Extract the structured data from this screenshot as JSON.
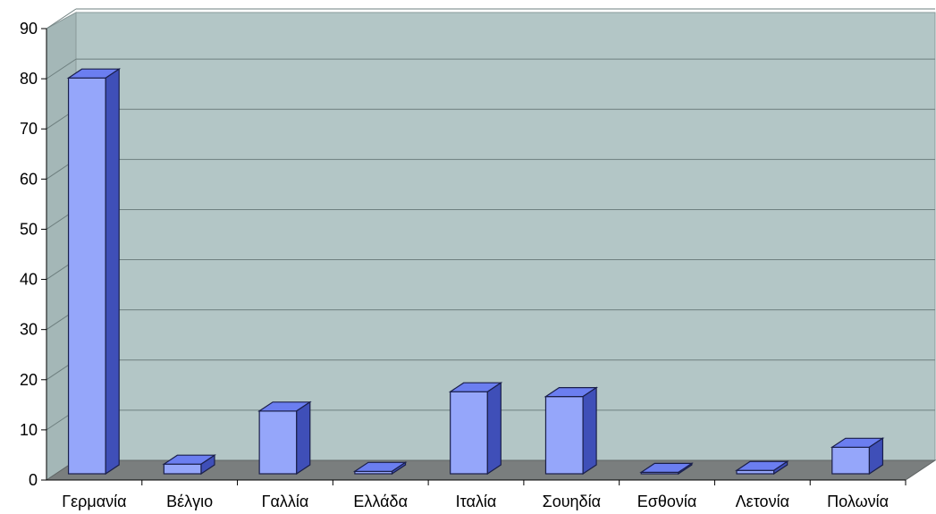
{
  "chart_data": {
    "type": "bar",
    "style": "3d-column",
    "categories": [
      "Γερμανία",
      "Βέλγιο",
      "Γαλλία",
      "Ελλάδα",
      "Ιταλία",
      "Σουηδία",
      "Εσθονία",
      "Λετονία",
      "Πολωνία"
    ],
    "values": [
      82,
      2,
      13,
      0.5,
      17,
      16,
      0.3,
      0.7,
      5.5
    ],
    "ylim": [
      0,
      90
    ],
    "yticks": [
      0,
      10,
      20,
      30,
      40,
      50,
      60,
      70,
      80,
      90
    ],
    "grid": true,
    "legend": "none",
    "colors": {
      "bar_front": "#95a6fa",
      "bar_top": "#6b7ef0",
      "bar_side": "#3f4fb8",
      "back_wall": "#b3c6c6",
      "side_wall": "#a4b7b7",
      "floor": "#7a7e7e",
      "gridline": "#6e7f7f"
    }
  }
}
